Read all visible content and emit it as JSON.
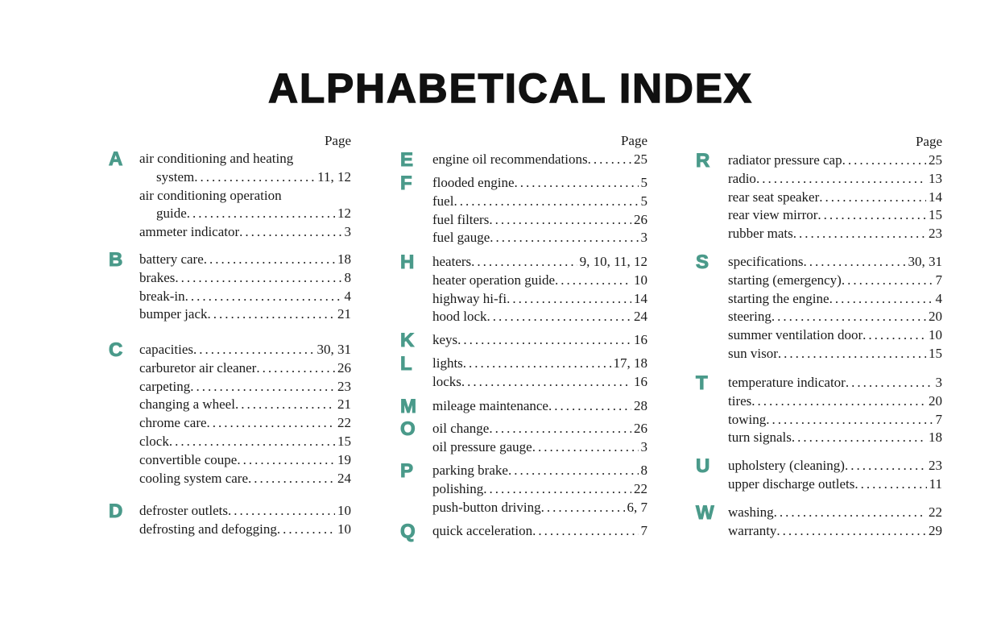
{
  "title": "ALPHABETICAL INDEX",
  "page_header": "Page",
  "accent_color": "#4a9a8a",
  "columns": [
    {
      "groups": [
        {
          "letter": "A",
          "entries": [
            {
              "lines": [
                "air conditioning and heating",
                "system"
              ],
              "page": "11, 12"
            },
            {
              "lines": [
                "air conditioning operation",
                "guide"
              ],
              "page": "12"
            },
            {
              "lines": [
                "ammeter indicator"
              ],
              "page": "3"
            }
          ]
        },
        {
          "letter": "B",
          "entries": [
            {
              "lines": [
                "battery care"
              ],
              "page": "18"
            },
            {
              "lines": [
                "brakes"
              ],
              "page": "8"
            },
            {
              "lines": [
                "break-in"
              ],
              "page": "4"
            },
            {
              "lines": [
                "bumper jack"
              ],
              "page": "21"
            }
          ]
        },
        {
          "letter": "C",
          "entries": [
            {
              "lines": [
                "capacities"
              ],
              "page": "30, 31"
            },
            {
              "lines": [
                "carburetor air cleaner"
              ],
              "page": "26"
            },
            {
              "lines": [
                "carpeting"
              ],
              "page": "23"
            },
            {
              "lines": [
                "changing a wheel"
              ],
              "page": "21"
            },
            {
              "lines": [
                "chrome care"
              ],
              "page": "22"
            },
            {
              "lines": [
                "clock"
              ],
              "page": "15"
            },
            {
              "lines": [
                "convertible coupe"
              ],
              "page": "19"
            },
            {
              "lines": [
                "cooling system care"
              ],
              "page": "24"
            }
          ]
        },
        {
          "letter": "D",
          "entries": [
            {
              "lines": [
                "defroster outlets"
              ],
              "page": "10"
            },
            {
              "lines": [
                "defrosting and defogging"
              ],
              "page": "10"
            }
          ]
        }
      ]
    },
    {
      "groups": [
        {
          "letter": "E",
          "entries": [
            {
              "lines": [
                "engine oil recommendations"
              ],
              "page": "25"
            }
          ]
        },
        {
          "letter": "F",
          "entries": [
            {
              "lines": [
                "flooded engine"
              ],
              "page": "5"
            },
            {
              "lines": [
                "fuel"
              ],
              "page": "5"
            },
            {
              "lines": [
                "fuel filters"
              ],
              "page": "26"
            },
            {
              "lines": [
                "fuel gauge"
              ],
              "page": "3"
            }
          ]
        },
        {
          "letter": "H",
          "entries": [
            {
              "lines": [
                "heaters"
              ],
              "page": "9, 10, 11, 12"
            },
            {
              "lines": [
                "heater operation guide"
              ],
              "page": "10"
            },
            {
              "lines": [
                "highway hi-fi"
              ],
              "page": "14"
            },
            {
              "lines": [
                "hood lock"
              ],
              "page": "24"
            }
          ]
        },
        {
          "letter": "K",
          "entries": [
            {
              "lines": [
                "keys"
              ],
              "page": "16"
            }
          ]
        },
        {
          "letter": "L",
          "entries": [
            {
              "lines": [
                "lights"
              ],
              "page": "17, 18"
            },
            {
              "lines": [
                "locks"
              ],
              "page": "16"
            }
          ]
        },
        {
          "letter": "M",
          "entries": [
            {
              "lines": [
                "mileage maintenance"
              ],
              "page": "28"
            }
          ]
        },
        {
          "letter": "O",
          "entries": [
            {
              "lines": [
                "oil change"
              ],
              "page": "26"
            },
            {
              "lines": [
                "oil pressure gauge"
              ],
              "page": "3"
            }
          ]
        },
        {
          "letter": "P",
          "entries": [
            {
              "lines": [
                "parking brake"
              ],
              "page": "8"
            },
            {
              "lines": [
                "polishing"
              ],
              "page": "22"
            },
            {
              "lines": [
                "push-button driving"
              ],
              "page": "6, 7"
            }
          ]
        },
        {
          "letter": "Q",
          "entries": [
            {
              "lines": [
                "quick acceleration"
              ],
              "page": "7"
            }
          ]
        }
      ]
    },
    {
      "groups": [
        {
          "letter": "R",
          "entries": [
            {
              "lines": [
                "radiator pressure cap"
              ],
              "page": "25"
            },
            {
              "lines": [
                "radio"
              ],
              "page": "13"
            },
            {
              "lines": [
                "rear seat speaker"
              ],
              "page": "14"
            },
            {
              "lines": [
                "rear view mirror"
              ],
              "page": "15"
            },
            {
              "lines": [
                "rubber mats"
              ],
              "page": "23"
            }
          ]
        },
        {
          "letter": "S",
          "entries": [
            {
              "lines": [
                "specifications"
              ],
              "page": "30, 31"
            },
            {
              "lines": [
                "starting (emergency)"
              ],
              "page": "7"
            },
            {
              "lines": [
                "starting the engine"
              ],
              "page": "4"
            },
            {
              "lines": [
                "steering"
              ],
              "page": "20"
            },
            {
              "lines": [
                "summer ventilation door"
              ],
              "page": "10"
            },
            {
              "lines": [
                "sun visor"
              ],
              "page": "15"
            }
          ]
        },
        {
          "letter": "T",
          "entries": [
            {
              "lines": [
                "temperature indicator"
              ],
              "page": "3"
            },
            {
              "lines": [
                "tires"
              ],
              "page": "20"
            },
            {
              "lines": [
                "towing"
              ],
              "page": "7"
            },
            {
              "lines": [
                "turn signals"
              ],
              "page": "18"
            }
          ]
        },
        {
          "letter": "U",
          "entries": [
            {
              "lines": [
                "upholstery (cleaning)"
              ],
              "page": "23"
            },
            {
              "lines": [
                "upper discharge outlets"
              ],
              "page": "11"
            }
          ]
        },
        {
          "letter": "W",
          "entries": [
            {
              "lines": [
                "washing"
              ],
              "page": "22"
            },
            {
              "lines": [
                "warranty"
              ],
              "page": "29"
            }
          ]
        }
      ]
    }
  ]
}
